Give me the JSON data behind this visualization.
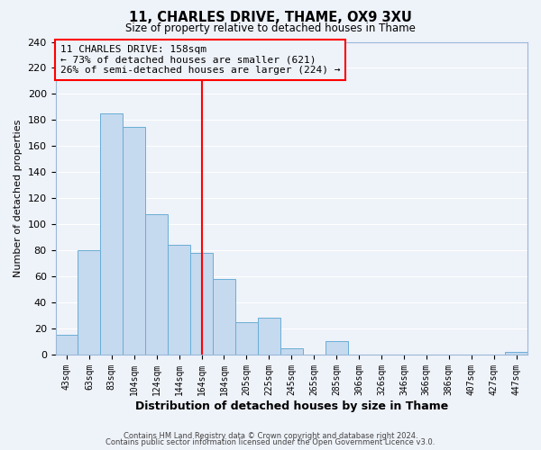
{
  "title": "11, CHARLES DRIVE, THAME, OX9 3XU",
  "subtitle": "Size of property relative to detached houses in Thame",
  "xlabel": "Distribution of detached houses by size in Thame",
  "ylabel": "Number of detached properties",
  "bar_labels": [
    "43sqm",
    "63sqm",
    "83sqm",
    "104sqm",
    "124sqm",
    "144sqm",
    "164sqm",
    "184sqm",
    "205sqm",
    "225sqm",
    "245sqm",
    "265sqm",
    "285sqm",
    "306sqm",
    "326sqm",
    "346sqm",
    "366sqm",
    "386sqm",
    "407sqm",
    "427sqm",
    "447sqm"
  ],
  "bar_values": [
    15,
    80,
    185,
    175,
    108,
    84,
    78,
    58,
    25,
    28,
    5,
    0,
    10,
    0,
    0,
    0,
    0,
    0,
    0,
    0,
    2
  ],
  "bar_color": "#c5d9ef",
  "bar_edge_color": "#6aaed6",
  "vline_x_index": 6,
  "vline_color": "red",
  "ylim": [
    0,
    240
  ],
  "yticks": [
    0,
    20,
    40,
    60,
    80,
    100,
    120,
    140,
    160,
    180,
    200,
    220,
    240
  ],
  "annotation_title": "11 CHARLES DRIVE: 158sqm",
  "annotation_line1": "← 73% of detached houses are smaller (621)",
  "annotation_line2": "26% of semi-detached houses are larger (224) →",
  "annotation_box_color": "red",
  "footer1": "Contains HM Land Registry data © Crown copyright and database right 2024.",
  "footer2": "Contains public sector information licensed under the Open Government Licence v3.0.",
  "background_color": "#eef2f9",
  "grid_color": "white"
}
